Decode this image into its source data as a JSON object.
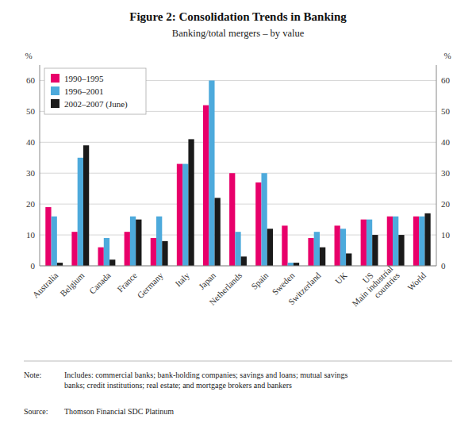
{
  "chart_data": {
    "type": "bar",
    "title": "Figure 2: Consolidation Trends in Banking",
    "subtitle": "Banking/total mergers – by value",
    "categories": [
      "Australia",
      "Belgium",
      "Canada",
      "France",
      "Germany",
      "Italy",
      "Japan",
      "Netherlands",
      "Spain",
      "Sweden",
      "Switzerland",
      "UK",
      "US",
      "Main industrial\ncountries",
      "World"
    ],
    "series": [
      {
        "name": "1990–1995",
        "color": "#E8006A",
        "values": [
          19,
          11,
          6,
          11,
          9,
          33,
          52,
          30,
          27,
          13,
          9,
          13,
          15,
          16,
          16
        ]
      },
      {
        "name": "1996–2001",
        "color": "#4DAADC",
        "values": [
          16,
          35,
          9,
          16,
          16,
          33,
          60,
          11,
          30,
          1,
          11,
          12,
          15,
          16,
          16
        ]
      },
      {
        "name": "2002–2007 (June)",
        "color": "#1A1A1A",
        "values": [
          1,
          39,
          2,
          15,
          8,
          41,
          22,
          3,
          12,
          1,
          6,
          4,
          10,
          10,
          17
        ]
      }
    ],
    "ylim": [
      0,
      65
    ],
    "yticks": [
      0,
      10,
      20,
      30,
      40,
      50,
      60
    ],
    "y2lim": [
      0,
      65
    ],
    "y2ticks": [
      0,
      10,
      20,
      30,
      40,
      50,
      60
    ],
    "ylabel": "%",
    "y2label": "%",
    "grid": true,
    "legend": "upper left",
    "note_label": "Note:",
    "note_text": "Includes: commercial banks; bank-holding companies; savings and loans; mutual savings\nbanks; credit institutions; real estate; and mortgage brokers and bankers",
    "source_label": "Source:",
    "source_text": "Thomson Financial SDC Platinum"
  }
}
